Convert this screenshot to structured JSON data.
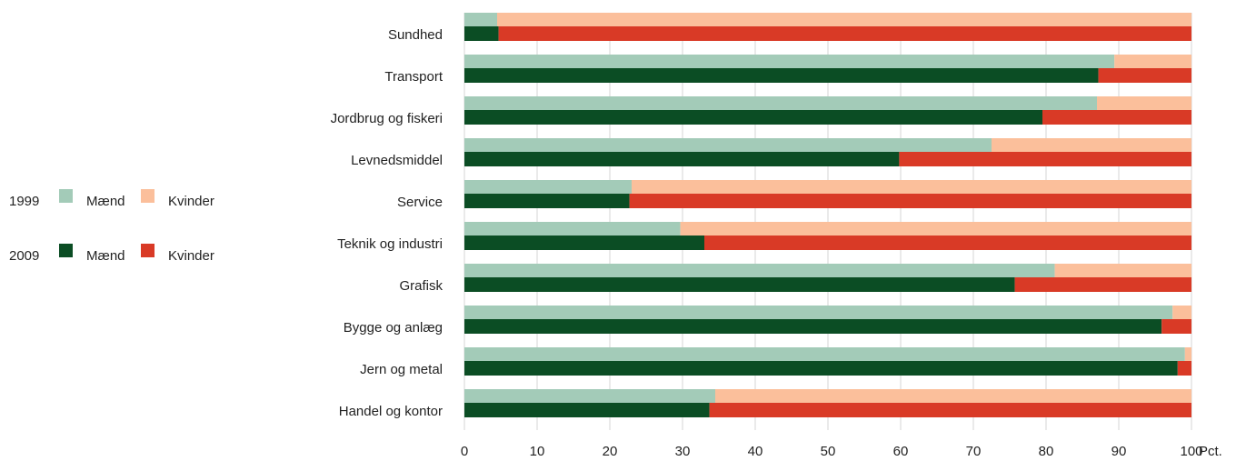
{
  "chart_data": {
    "type": "bar",
    "orientation": "horizontal",
    "stacked": true,
    "categories": [
      "Sundhed",
      "Transport",
      "Jordbrug og fiskeri",
      "Levnedsmiddel",
      "Service",
      "Teknik og industri",
      "Grafisk",
      "Bygge og anlæg",
      "Jern og metal",
      "Handel og kontor"
    ],
    "series": [
      {
        "name": "Mænd",
        "group": "1999",
        "color": "#a3cbb8",
        "values": [
          4.5,
          89.4,
          87,
          72.5,
          23,
          29.7,
          81.2,
          97.4,
          99.1,
          34.5
        ]
      },
      {
        "name": "Kvinder",
        "group": "1999",
        "color": "#fbbf9b",
        "values": [
          95.5,
          10.6,
          13,
          27.5,
          77,
          70.3,
          18.8,
          2.6,
          0.9,
          65.5
        ]
      },
      {
        "name": "Mænd",
        "group": "2009",
        "color": "#0b4d24",
        "values": [
          4.7,
          87.2,
          79.5,
          59.8,
          22.7,
          33,
          75.7,
          95.9,
          98.1,
          33.7
        ]
      },
      {
        "name": "Kvinder",
        "group": "2009",
        "color": "#d93a26",
        "values": [
          95.3,
          12.8,
          20.5,
          40.2,
          77.3,
          67,
          24.3,
          4.1,
          1.9,
          66.3
        ]
      }
    ],
    "x_label": "Pct.",
    "xlim": [
      0,
      100
    ],
    "xticks": [
      0,
      10,
      20,
      30,
      40,
      50,
      60,
      70,
      80,
      90,
      100
    ],
    "grid": true
  }
}
